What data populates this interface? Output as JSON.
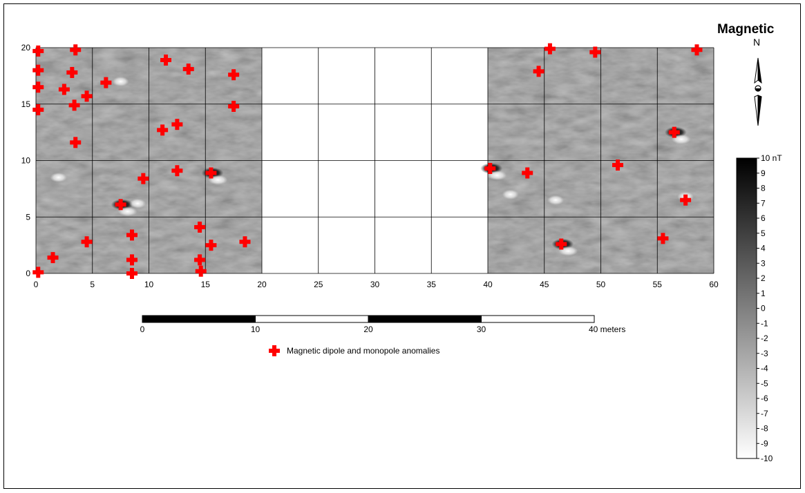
{
  "map": {
    "x_axis_ticks": [
      "0",
      "5",
      "10",
      "15",
      "20",
      "25",
      "30",
      "35",
      "40",
      "45",
      "50",
      "55",
      "60"
    ],
    "y_axis_ticks": [
      "0",
      "5",
      "10",
      "15",
      "20"
    ],
    "survey_extent": {
      "x": [
        0,
        60
      ],
      "y": [
        0,
        20
      ]
    },
    "unsurveyed_gap_x": [
      20,
      40
    ],
    "grid_spacing_m": 5
  },
  "north_arrow": {
    "title": "Magnetic",
    "letter": "N"
  },
  "colorbar": {
    "labels": [
      "10 nT",
      "9",
      "8",
      "7",
      "6",
      "5",
      "4",
      "3",
      "2",
      "1",
      "0",
      "-1",
      "-2",
      "-3",
      "-4",
      "-5",
      "-6",
      "-7",
      "-8",
      "-9",
      "-10"
    ],
    "min": -10,
    "max": 10,
    "unit": "nT",
    "low_color": "#ffffff",
    "high_color": "#000000"
  },
  "scale_bar": {
    "labels": [
      "0",
      "10",
      "20",
      "30",
      "40 meters"
    ],
    "segment_m": 10
  },
  "legend": {
    "label": "Magnetic dipole and monopole anomalies",
    "marker_color": "#ff0000"
  },
  "chart_data": {
    "type": "scatter",
    "xlim": [
      0,
      60
    ],
    "ylim": [
      0,
      20
    ],
    "series": [
      {
        "name": "Magnetic dipole and monopole anomalies",
        "points": [
          [
            0.2,
            19.7
          ],
          [
            3.5,
            19.8
          ],
          [
            0.2,
            18.0
          ],
          [
            3.2,
            17.8
          ],
          [
            0.2,
            16.5
          ],
          [
            2.5,
            16.3
          ],
          [
            4.5,
            15.7
          ],
          [
            6.2,
            16.9
          ],
          [
            0.2,
            14.5
          ],
          [
            3.4,
            14.9
          ],
          [
            11.5,
            18.9
          ],
          [
            13.5,
            18.1
          ],
          [
            17.5,
            17.6
          ],
          [
            17.5,
            14.8
          ],
          [
            11.2,
            12.7
          ],
          [
            12.5,
            13.2
          ],
          [
            3.5,
            11.6
          ],
          [
            9.5,
            8.4
          ],
          [
            12.5,
            9.1
          ],
          [
            15.5,
            8.9
          ],
          [
            7.5,
            6.1
          ],
          [
            14.5,
            4.1
          ],
          [
            8.5,
            3.4
          ],
          [
            4.5,
            2.8
          ],
          [
            15.5,
            2.5
          ],
          [
            18.5,
            2.8
          ],
          [
            1.5,
            1.4
          ],
          [
            8.5,
            1.2
          ],
          [
            14.5,
            1.2
          ],
          [
            0.2,
            0.1
          ],
          [
            8.5,
            0.0
          ],
          [
            14.6,
            0.2
          ],
          [
            45.5,
            19.9
          ],
          [
            49.5,
            19.6
          ],
          [
            58.5,
            19.8
          ],
          [
            44.5,
            17.9
          ],
          [
            56.5,
            12.5
          ],
          [
            51.5,
            9.6
          ],
          [
            40.2,
            9.3
          ],
          [
            43.5,
            8.9
          ],
          [
            57.5,
            6.5
          ],
          [
            55.5,
            3.1
          ],
          [
            46.5,
            2.6
          ]
        ]
      }
    ]
  }
}
